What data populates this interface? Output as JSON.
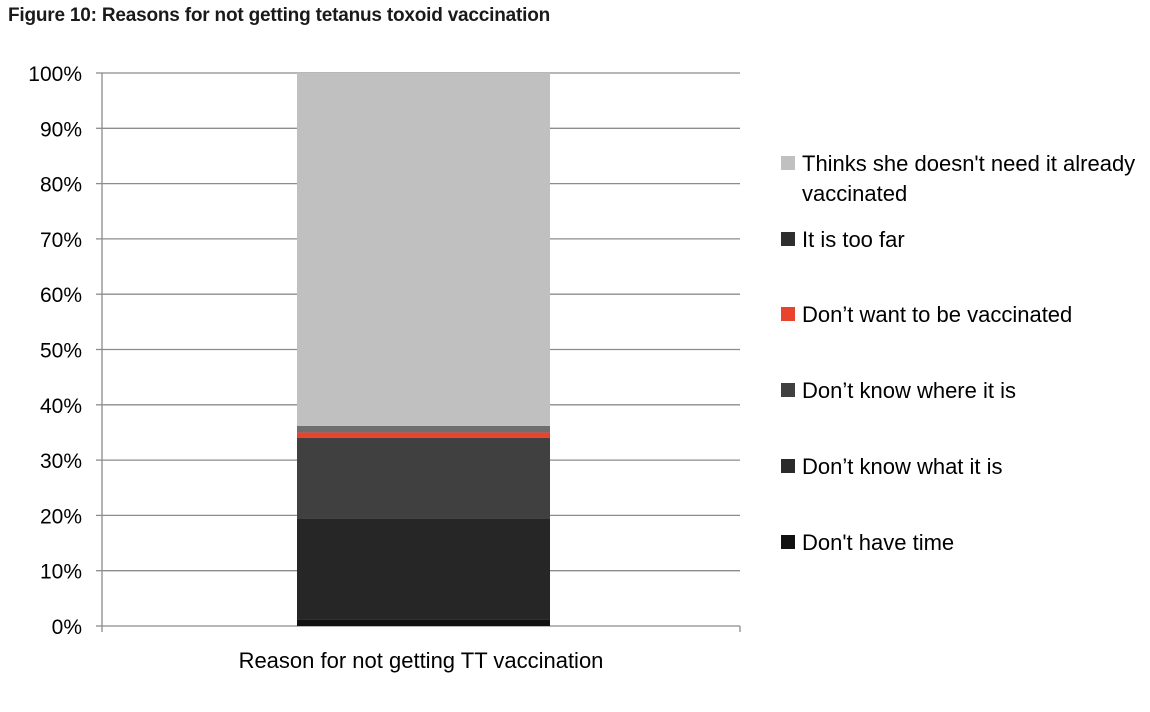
{
  "title": "Figure 10: Reasons for not getting tetanus toxoid vaccination",
  "chart_data": {
    "type": "bar",
    "stacked": true,
    "normalized_percent": true,
    "categories": [
      "Reason for not getting TT vaccination"
    ],
    "xlabel": "Reason for not getting TT vaccination",
    "ylabel": "",
    "ylim": [
      0,
      100
    ],
    "yticks": [
      "0%",
      "10%",
      "20%",
      "30%",
      "40%",
      "50%",
      "60%",
      "70%",
      "80%",
      "90%",
      "100%"
    ],
    "grid": true,
    "legend_position": "right",
    "series": [
      {
        "name": "Don't have time",
        "values": [
          1.2
        ],
        "color": "#111111"
      },
      {
        "name": "Don’t know what it is",
        "values": [
          18.3
        ],
        "color": "#262626"
      },
      {
        "name": "Don’t know where it is",
        "values": [
          14.5
        ],
        "color": "#404040"
      },
      {
        "name": "Don’t want to be vaccinated",
        "values": [
          1.0
        ],
        "color": "#e8432d"
      },
      {
        "name": "It is too far",
        "values": [
          1.2
        ],
        "color": "#6e6e6e"
      },
      {
        "name": "Thinks she doesn't need it already vaccinated",
        "values": [
          63.8
        ],
        "color": "#c0c0c0"
      }
    ],
    "legend_items": [
      {
        "lines": [
          "Thinks she doesn't need it already",
          "vaccinated"
        ],
        "color": "#c0c0c0"
      },
      {
        "lines": [
          "It is too far"
        ],
        "color": "#2e2e2e"
      },
      {
        "lines": [
          "Don’t want to be vaccinated"
        ],
        "color": "#e8432d"
      },
      {
        "lines": [
          "Don’t know where it is"
        ],
        "color": "#404040"
      },
      {
        "lines": [
          "Don’t know what it is"
        ],
        "color": "#2a2a2a"
      },
      {
        "lines": [
          "Don't have time"
        ],
        "color": "#111111"
      }
    ]
  }
}
